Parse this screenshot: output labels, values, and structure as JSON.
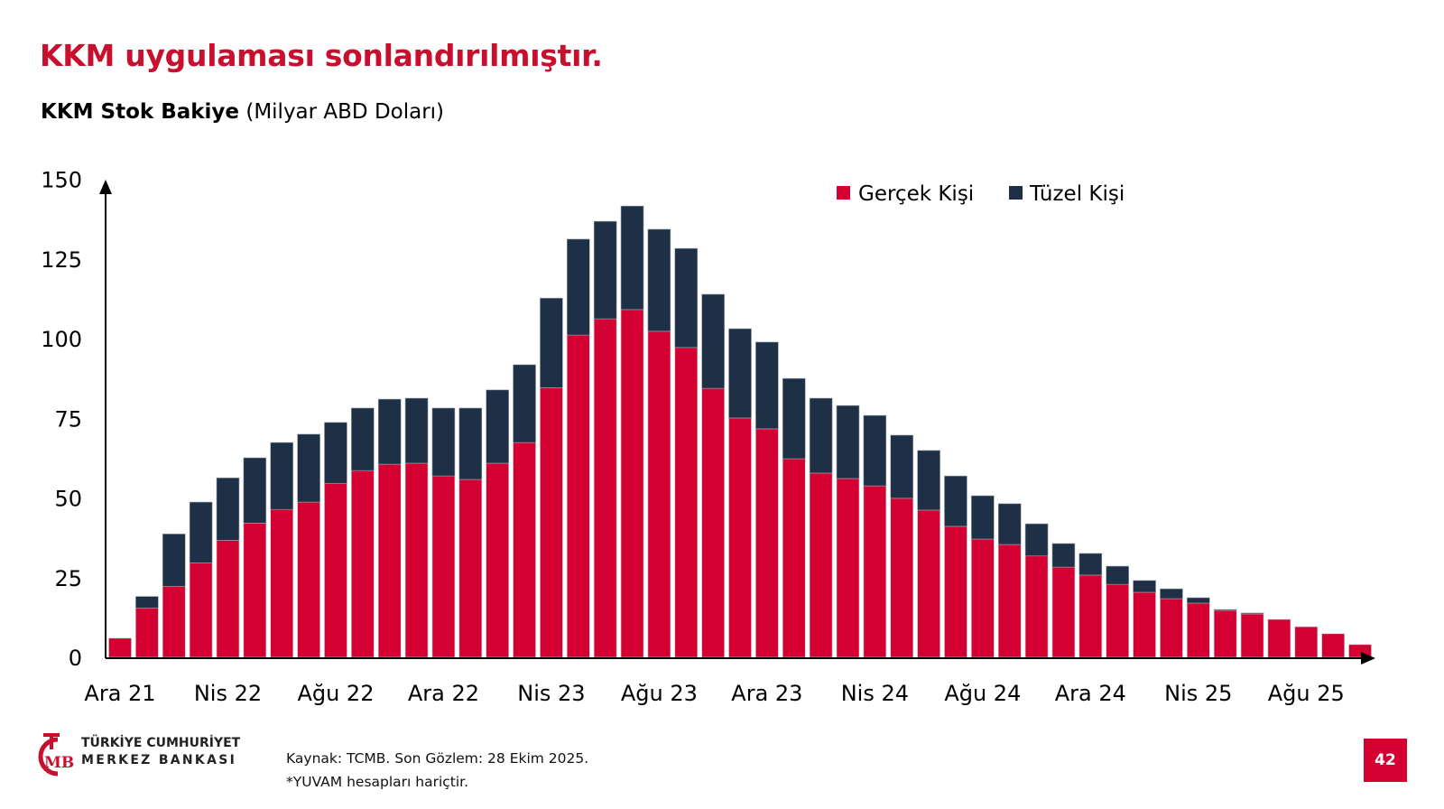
{
  "slide": {
    "title": "KKM uygulaması sonlandırılmıştır.",
    "subtitle_bold": "KKM Stok Bakiye",
    "subtitle_unit": "(Milyar ABD Doları)",
    "page_number": "42"
  },
  "footer": {
    "logo_line1": "TÜRKİYE CUMHURİYET",
    "logo_line2": "MERKEZ BANKASI",
    "logo_monogram": "TCMB",
    "source": "Kaynak: TCMB. Son Gözlem: 28 Ekim 2025.",
    "note": "*YUVAM hesapları hariçtir."
  },
  "colors": {
    "title": "#c8102e",
    "gercek": "#d50032",
    "tuzel": "#1e3045",
    "page_box": "#d50032"
  },
  "chart_data": {
    "type": "bar",
    "stacked": true,
    "title": "KKM Stok Bakiye (Milyar ABD Doları)",
    "xlabel": "",
    "ylabel": "",
    "ylim": [
      0,
      150
    ],
    "yticks": [
      0,
      25,
      50,
      75,
      100,
      125,
      150
    ],
    "ytick_labels": [
      "0",
      "25",
      "50",
      "75",
      "100",
      "125",
      "150"
    ],
    "grid": false,
    "legend_position": "top-right",
    "xtick_labels": [
      "Ara 21",
      "Nis 22",
      "Ağu 22",
      "Ara 22",
      "Nis 23",
      "Ağu 23",
      "Ara 23",
      "Nis 24",
      "Ağu 24",
      "Ara 24",
      "Nis 25",
      "Ağu 25"
    ],
    "xtick_every": 4,
    "categories": [
      "Ara 21",
      "Oca 22",
      "Şub 22",
      "Mar 22",
      "Nis 22",
      "May 22",
      "Haz 22",
      "Tem 22",
      "Ağu 22",
      "Eyl 22",
      "Eki 22",
      "Kas 22",
      "Ara 22",
      "Oca 23",
      "Şub 23",
      "Mar 23",
      "Nis 23",
      "May 23",
      "Haz 23",
      "Tem 23",
      "Ağu 23",
      "Eyl 23",
      "Eki 23",
      "Kas 23",
      "Ara 23",
      "Oca 24",
      "Şub 24",
      "Mar 24",
      "Nis 24",
      "May 24",
      "Haz 24",
      "Tem 24",
      "Ağu 24",
      "Eyl 24",
      "Eki 24",
      "Kas 24",
      "Ara 24",
      "Oca 25",
      "Şub 25",
      "Mar 25",
      "Nis 25",
      "May 25",
      "Haz 25",
      "Tem 25",
      "Ağu 25",
      "Eyl 25",
      "Eki 25"
    ],
    "series": [
      {
        "name": "Gerçek Kişi",
        "values": [
          6.0,
          15.5,
          22.3,
          29.6,
          36.7,
          42.1,
          46.4,
          48.7,
          54.6,
          58.6,
          60.6,
          60.9,
          56.9,
          55.8,
          60.9,
          67.4,
          84.6,
          101.1,
          106.2,
          109.1,
          102.3,
          97.2,
          84.4,
          75.1,
          71.7,
          62.3,
          57.8,
          56.1,
          53.8,
          49.9,
          46.2,
          41.1,
          37.1,
          35.4,
          31.8,
          28.3,
          25.8,
          22.9,
          20.4,
          18.4,
          17.0,
          14.7,
          13.6,
          11.9,
          9.6,
          7.4,
          4.0
        ]
      },
      {
        "name": "Tüzel Kişi",
        "values": [
          0.0,
          3.6,
          16.4,
          19.1,
          19.6,
          20.5,
          21.0,
          21.3,
          19.1,
          19.6,
          20.4,
          20.4,
          21.3,
          22.4,
          23.0,
          24.4,
          28.1,
          30.1,
          30.6,
          32.5,
          32.0,
          31.1,
          29.5,
          28.0,
          27.2,
          25.2,
          23.5,
          22.9,
          22.1,
          19.8,
          18.7,
          15.8,
          13.6,
          12.8,
          10.1,
          7.4,
          6.8,
          5.7,
          3.7,
          3.1,
          1.7,
          0.3,
          0.3,
          0.0,
          0.0,
          0.0,
          0.0
        ]
      }
    ]
  }
}
